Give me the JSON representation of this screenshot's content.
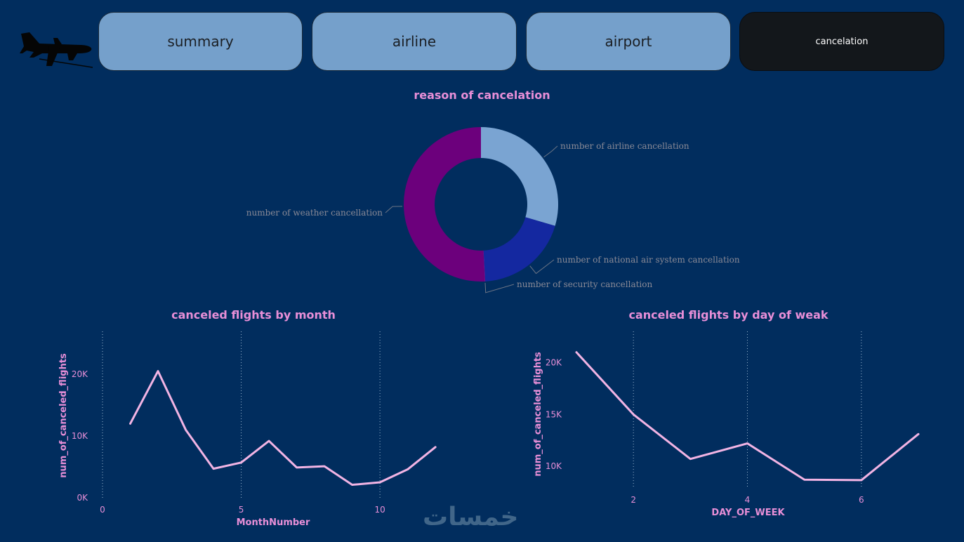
{
  "nav": {
    "tabs": [
      {
        "label": "summary",
        "active": false
      },
      {
        "label": "airline",
        "active": false
      },
      {
        "label": "airport",
        "active": false
      },
      {
        "label": "cancelation",
        "active": true
      }
    ]
  },
  "logo": {
    "icon": "airplane-icon"
  },
  "watermark": "خمسات",
  "colors": {
    "background": "#012d5e",
    "nav_inactive": "#75a0cb",
    "nav_active": "#13171b",
    "accent_pink": "#e88fd8",
    "line": "#f2b4e4"
  },
  "chart_data": [
    {
      "type": "pie",
      "style": "donut",
      "title": "reason of cancelation",
      "labels": [
        "number of airline cancellation",
        "number of national air system cancellation",
        "number of security cancellation",
        "number of weather cancellation"
      ],
      "values": [
        29.5,
        19.6,
        0.1,
        50.8
      ],
      "colors": [
        "#7aa4d2",
        "#1428a0",
        "#7a1aa0",
        "#6c007c"
      ]
    },
    {
      "type": "line",
      "title": "canceled flights by month",
      "xlabel": "MonthNumber",
      "ylabel": "num_of_canceled_flights",
      "x": [
        1,
        2,
        3,
        4,
        5,
        6,
        7,
        8,
        9,
        10,
        11,
        12
      ],
      "values": [
        12000,
        20500,
        11000,
        4700,
        5700,
        9200,
        4900,
        5100,
        2100,
        2500,
        4600,
        8200
      ],
      "xlim": [
        0,
        12.3
      ],
      "ylim": [
        0,
        25000
      ],
      "xticks": [
        0,
        5,
        10
      ],
      "xtick_labels": [
        "0",
        "5",
        "10"
      ],
      "yticks": [
        0,
        10000,
        20000
      ],
      "ytick_labels": [
        "0K",
        "10K",
        "20K"
      ],
      "grid": "vertical-dotted",
      "color": "#f2b4e4"
    },
    {
      "type": "line",
      "title": "canceled flights by day of weak",
      "xlabel": "DAY_OF_WEEK",
      "ylabel": "num_of_canceled_flights",
      "x": [
        1,
        2,
        3,
        4,
        5,
        6,
        7
      ],
      "values": [
        21000,
        15000,
        10700,
        12200,
        8700,
        8650,
        13100
      ],
      "xlim": [
        1,
        7
      ],
      "ylim": [
        7900,
        22000
      ],
      "xticks": [
        2,
        4,
        6
      ],
      "xtick_labels": [
        "2",
        "4",
        "6"
      ],
      "yticks": [
        10000,
        15000,
        20000
      ],
      "ytick_labels": [
        "10K",
        "15K",
        "20K"
      ],
      "grid": "vertical-dotted",
      "color": "#f2b4e4"
    }
  ]
}
